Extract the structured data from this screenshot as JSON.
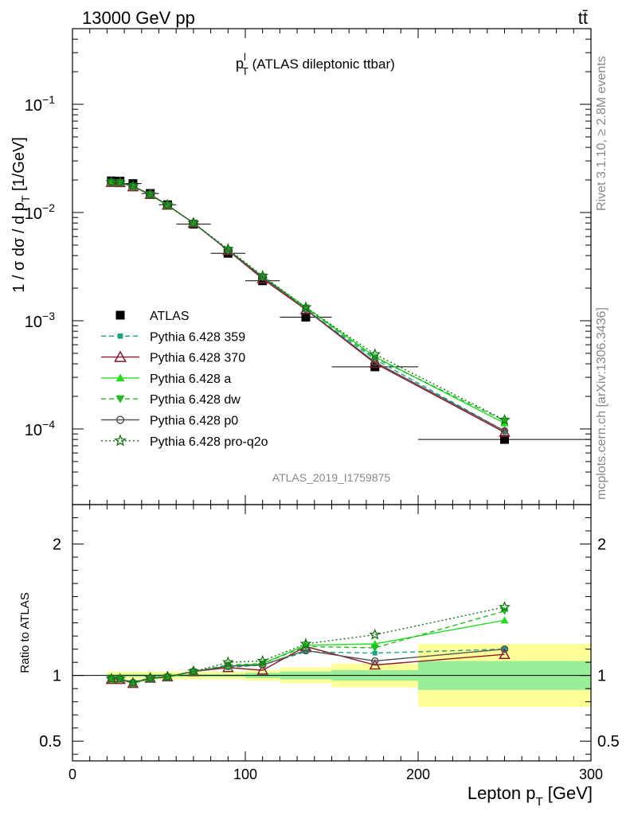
{
  "header": {
    "left": "13000 GeV pp",
    "right": "tt̄"
  },
  "side": {
    "rivet": "Rivet 3.1.10, ≥ 2.8M events",
    "site": "mcplots.cern.ch [arXiv:1306.3436]"
  },
  "watermark": "ATLAS_2019_I1759875",
  "chart_data": [
    {
      "type": "scatter",
      "title_main": "p",
      "title_sup": "l",
      "title_sub": "T",
      "title_rest": " (ATLAS dileptonic ttbar)",
      "ylabel": "1 / σ  dσ / d p",
      "ylabel_sub": "T",
      "ylabel_unit": " [1/GeV]",
      "y_log": true,
      "ylim": [
        2e-05,
        0.5
      ],
      "xlim": [
        0,
        300
      ],
      "ytick_labels": [
        {
          "base": "10",
          "exp": "−1",
          "value": 0.1
        },
        {
          "base": "10",
          "exp": "−2",
          "value": 0.01
        },
        {
          "base": "10",
          "exp": "−3",
          "value": 0.001
        },
        {
          "base": "10",
          "exp": "−4",
          "value": 0.0001
        }
      ],
      "x": [
        22.5,
        27.5,
        35,
        45,
        55,
        70,
        90,
        110,
        135,
        175,
        250
      ],
      "x_edges": [
        20,
        25,
        30,
        40,
        50,
        60,
        80,
        100,
        120,
        150,
        200,
        300
      ],
      "legend_position": "center-left",
      "series": [
        {
          "name": "ATLAS",
          "color": "#000000",
          "marker": "square",
          "line": "none",
          "values": [
            0.0196,
            0.0195,
            0.0185,
            0.015,
            0.0118,
            0.0078,
            0.0042,
            0.00234,
            0.00108,
            0.000375,
            8e-05
          ]
        },
        {
          "name": "Pythia 6.428 359",
          "color": "#1aa382",
          "marker": "small-square",
          "line": "dashed",
          "values": [
            0.0192,
            0.019,
            0.0176,
            0.0147,
            0.0117,
            0.008,
            0.00446,
            0.00253,
            0.00127,
            0.00044,
            9.6e-05
          ]
        },
        {
          "name": "Pythia 6.428 370",
          "color": "#8b1a2e",
          "marker": "open-triangle",
          "line": "solid",
          "values": [
            0.019,
            0.0189,
            0.0173,
            0.0147,
            0.0117,
            0.008,
            0.00446,
            0.00244,
            0.00127,
            0.000405,
            9.3e-05
          ]
        },
        {
          "name": "Pythia 6.428 a",
          "color": "#22dd22",
          "marker": "triangle",
          "line": "solid",
          "values": [
            0.019,
            0.019,
            0.0174,
            0.0146,
            0.0116,
            0.008,
            0.0045,
            0.00256,
            0.00133,
            0.000465,
            0.000113
          ]
        },
        {
          "name": "Pythia 6.428 dw",
          "color": "#22bb22",
          "marker": "inverted-triangle",
          "line": "dashed",
          "values": [
            0.0191,
            0.019,
            0.0174,
            0.0146,
            0.0117,
            0.008,
            0.00452,
            0.00256,
            0.00132,
            0.000455,
            0.000119
          ]
        },
        {
          "name": "Pythia 6.428 p0",
          "color": "#555555",
          "marker": "open-circle",
          "line": "solid",
          "values": [
            0.0191,
            0.019,
            0.0175,
            0.0147,
            0.0117,
            0.008,
            0.00448,
            0.00253,
            0.00128,
            0.000415,
            9.6e-05
          ]
        },
        {
          "name": "Pythia 6.428 pro-q2o",
          "color": "#117711",
          "marker": "star",
          "line": "dotted",
          "values": [
            0.0191,
            0.019,
            0.0175,
            0.0147,
            0.0117,
            0.008,
            0.0046,
            0.0026,
            0.00133,
            0.00049,
            0.000121
          ]
        }
      ]
    },
    {
      "type": "line",
      "ylabel": "Ratio to ATLAS",
      "xlabel": "Lepton p",
      "xlabel_sub": "T",
      "xlabel_unit": " [GeV]",
      "xlim": [
        0,
        300
      ],
      "ylim": [
        0.35,
        2.3
      ],
      "x_ticks": [
        0,
        100,
        200,
        300
      ],
      "y_ticks": [
        0.5,
        1,
        2
      ],
      "y_tick_labels": [
        "0.5",
        "1",
        "2"
      ],
      "bands": {
        "x_edges": [
          20,
          25,
          30,
          40,
          50,
          60,
          80,
          100,
          120,
          150,
          200,
          300
        ],
        "stat_half_width": [
          0.01,
          0.01,
          0.01,
          0.01,
          0.01,
          0.01,
          0.01,
          0.02,
          0.03,
          0.04,
          0.11
        ],
        "total_half_width": [
          0.03,
          0.03,
          0.03,
          0.03,
          0.03,
          0.03,
          0.03,
          0.04,
          0.06,
          0.09,
          0.24
        ],
        "stat_color": "#99ee99",
        "total_color": "#ffff99"
      },
      "series": [
        {
          "name": "Pythia 6.428 359",
          "values": [
            0.98,
            0.975,
            0.95,
            0.98,
            0.99,
            1.03,
            1.06,
            1.08,
            1.18,
            1.17,
            1.2
          ]
        },
        {
          "name": "Pythia 6.428 370",
          "values": [
            0.97,
            0.97,
            0.94,
            0.98,
            0.99,
            1.03,
            1.06,
            1.04,
            1.22,
            1.08,
            1.16
          ]
        },
        {
          "name": "Pythia 6.428 a",
          "values": [
            0.97,
            0.975,
            0.94,
            0.975,
            0.985,
            1.03,
            1.07,
            1.09,
            1.23,
            1.24,
            1.42
          ]
        },
        {
          "name": "Pythia 6.428 dw",
          "values": [
            0.975,
            0.975,
            0.94,
            0.975,
            0.99,
            1.03,
            1.08,
            1.09,
            1.22,
            1.21,
            1.49
          ]
        },
        {
          "name": "Pythia 6.428 p0",
          "values": [
            0.975,
            0.975,
            0.945,
            0.98,
            0.99,
            1.03,
            1.07,
            1.08,
            1.19,
            1.11,
            1.2
          ]
        },
        {
          "name": "Pythia 6.428 pro-q2o",
          "values": [
            0.975,
            0.975,
            0.945,
            0.98,
            0.99,
            1.03,
            1.1,
            1.11,
            1.24,
            1.31,
            1.52
          ]
        }
      ]
    }
  ]
}
